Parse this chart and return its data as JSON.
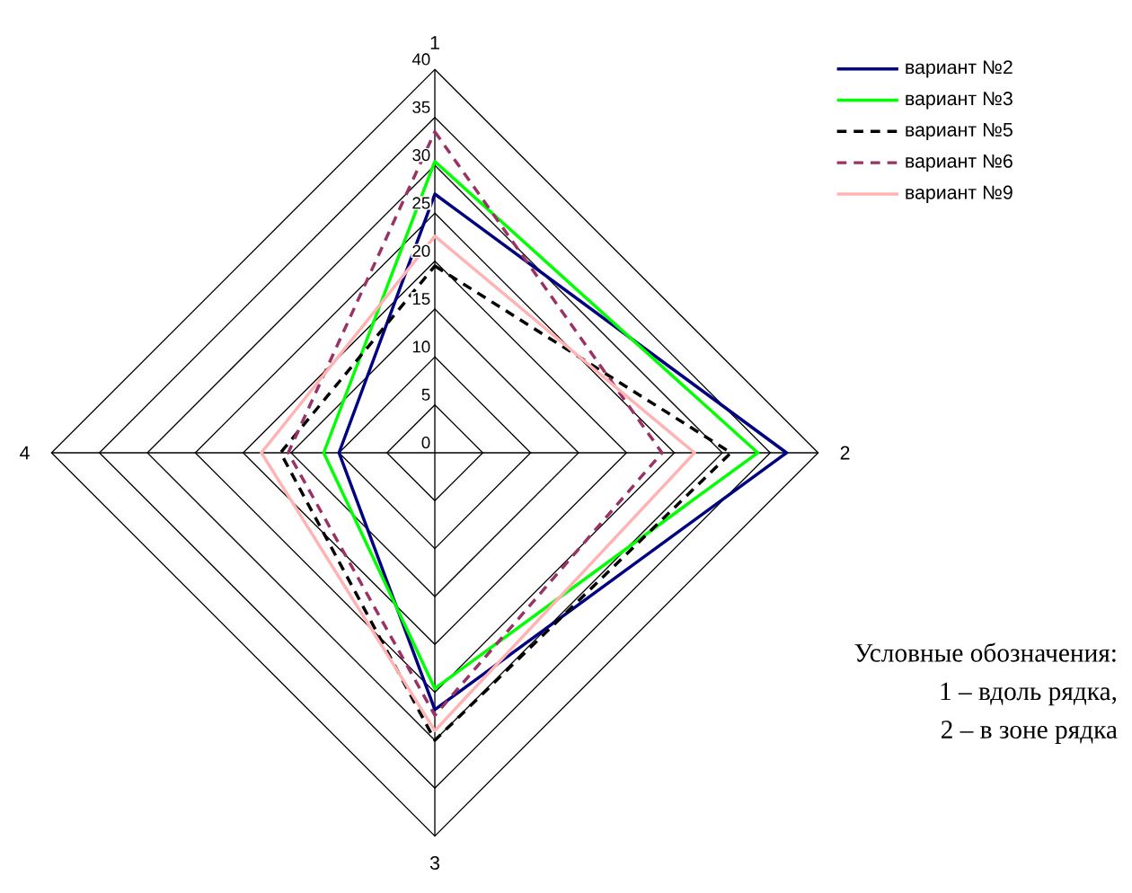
{
  "chart_data": {
    "type": "radar",
    "categories": [
      "1",
      "2",
      "3",
      "4"
    ],
    "ylim": [
      0,
      40
    ],
    "yticks": [
      0,
      5,
      10,
      15,
      20,
      25,
      30,
      35,
      40
    ],
    "grid": true,
    "legend": "top right",
    "series": [
      {
        "name": "вариант №2",
        "color": "#000080",
        "line_style": "solid",
        "values": [
          27,
          36.7,
          26.8,
          10
        ]
      },
      {
        "name": "вариант №3",
        "color": "#00ff00",
        "line_style": "solid",
        "values": [
          30.4,
          33.7,
          24.6,
          11.6
        ]
      },
      {
        "name": "вариант №5",
        "color": "#000000",
        "line_style": "dashed",
        "values": [
          19.5,
          30.9,
          30,
          16.1
        ]
      },
      {
        "name": "вариант №6",
        "color": "#993366",
        "line_style": "dashed",
        "values": [
          33.5,
          23.7,
          27.4,
          15.3
        ]
      },
      {
        "name": "вариант №9",
        "color": "#ffb3b3",
        "line_style": "solid",
        "values": [
          22.6,
          27.1,
          29,
          18.1
        ]
      }
    ],
    "annotations": [
      "Условные обозначения:",
      "1 – вдоль рядка,",
      "2 – в зоне рядка"
    ]
  }
}
